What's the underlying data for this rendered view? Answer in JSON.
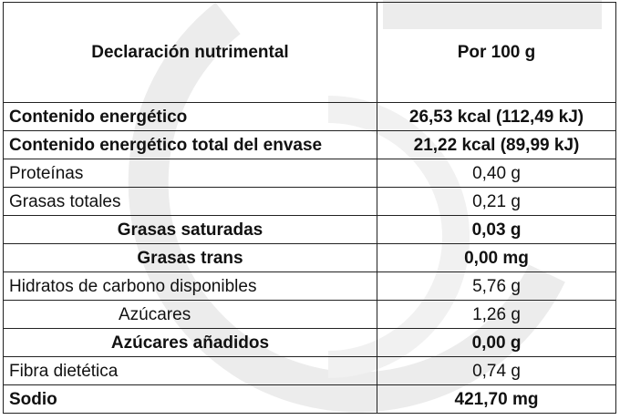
{
  "table": {
    "header": {
      "label": "Declaración nutrimental",
      "value": "Por 100 g"
    },
    "rows": [
      {
        "label": "Contenido energético",
        "value": "26,53 kcal (112,49 kJ)",
        "bold": true
      },
      {
        "label": "Contenido energético total del envase",
        "value": "21,22 kcal (89,99 kJ)",
        "bold": true
      },
      {
        "label": "Proteínas",
        "value": "0,40 g",
        "bold": false
      },
      {
        "label": "Grasas totales",
        "value": "0,21 g",
        "bold": false
      },
      {
        "label": "Grasas saturadas",
        "value": "0,03 g",
        "bold": true
      },
      {
        "label": "Grasas trans",
        "value": "0,00 mg",
        "bold": true
      },
      {
        "label": "Hidratos de carbono disponibles",
        "value": "5,76 g",
        "bold": false
      },
      {
        "label": "Azúcares",
        "value": "1,26 g",
        "bold": false
      },
      {
        "label": "Azúcares añadidos",
        "value": "0,00 g",
        "bold": true
      },
      {
        "label": "Fibra dietética",
        "value": "0,74 g",
        "bold": false
      },
      {
        "label": "Sodio",
        "value": "421,70 mg",
        "bold": true
      }
    ]
  },
  "colors": {
    "border": "#222222",
    "text": "#111111",
    "watermark": "#e9e9e9"
  }
}
